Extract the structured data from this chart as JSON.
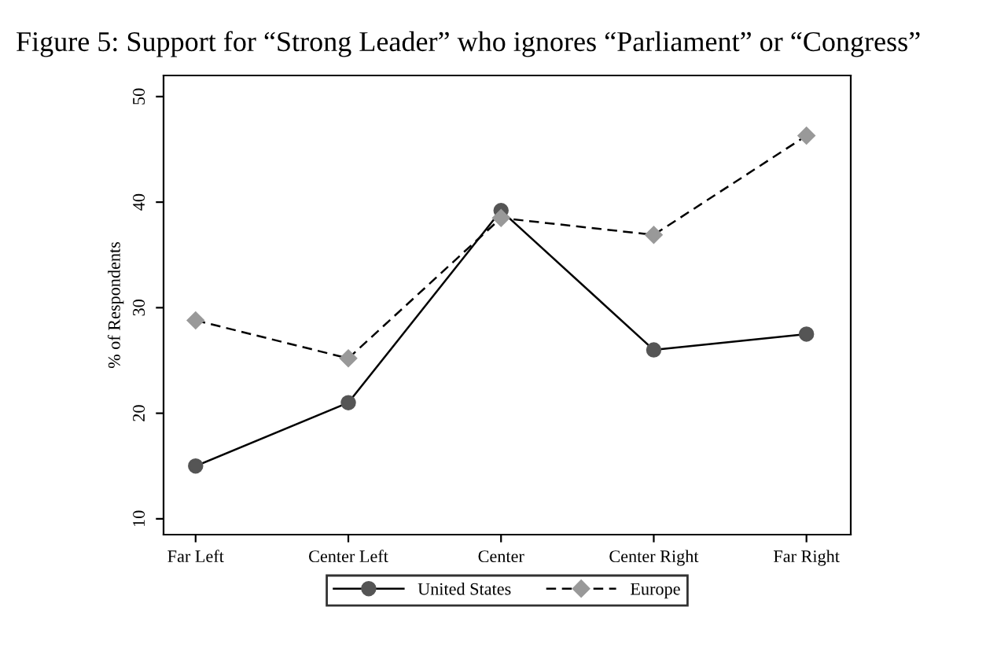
{
  "chart_data": {
    "type": "line",
    "title": "Figure 5: Support for “Strong Leader” who ignores “Parliament” or “Congress”",
    "ylabel": "% of Respondents",
    "categories": [
      "Far Left",
      "Center Left",
      "Center",
      "Center Right",
      "Far Right"
    ],
    "series": [
      {
        "name": "United States",
        "color": "#555555",
        "values": [
          15,
          21,
          39.2,
          26,
          27.5
        ],
        "marker": "circle",
        "line_style": "solid"
      },
      {
        "name": "Europe",
        "color": "#999999",
        "values": [
          28.8,
          25.2,
          38.5,
          36.9,
          46.3
        ],
        "marker": "diamond",
        "line_style": "dashed"
      }
    ],
    "ylim": [
      8.5,
      52
    ],
    "yticks": [
      10,
      20,
      30,
      40,
      50
    ],
    "grid": false,
    "legend": "bottom"
  }
}
